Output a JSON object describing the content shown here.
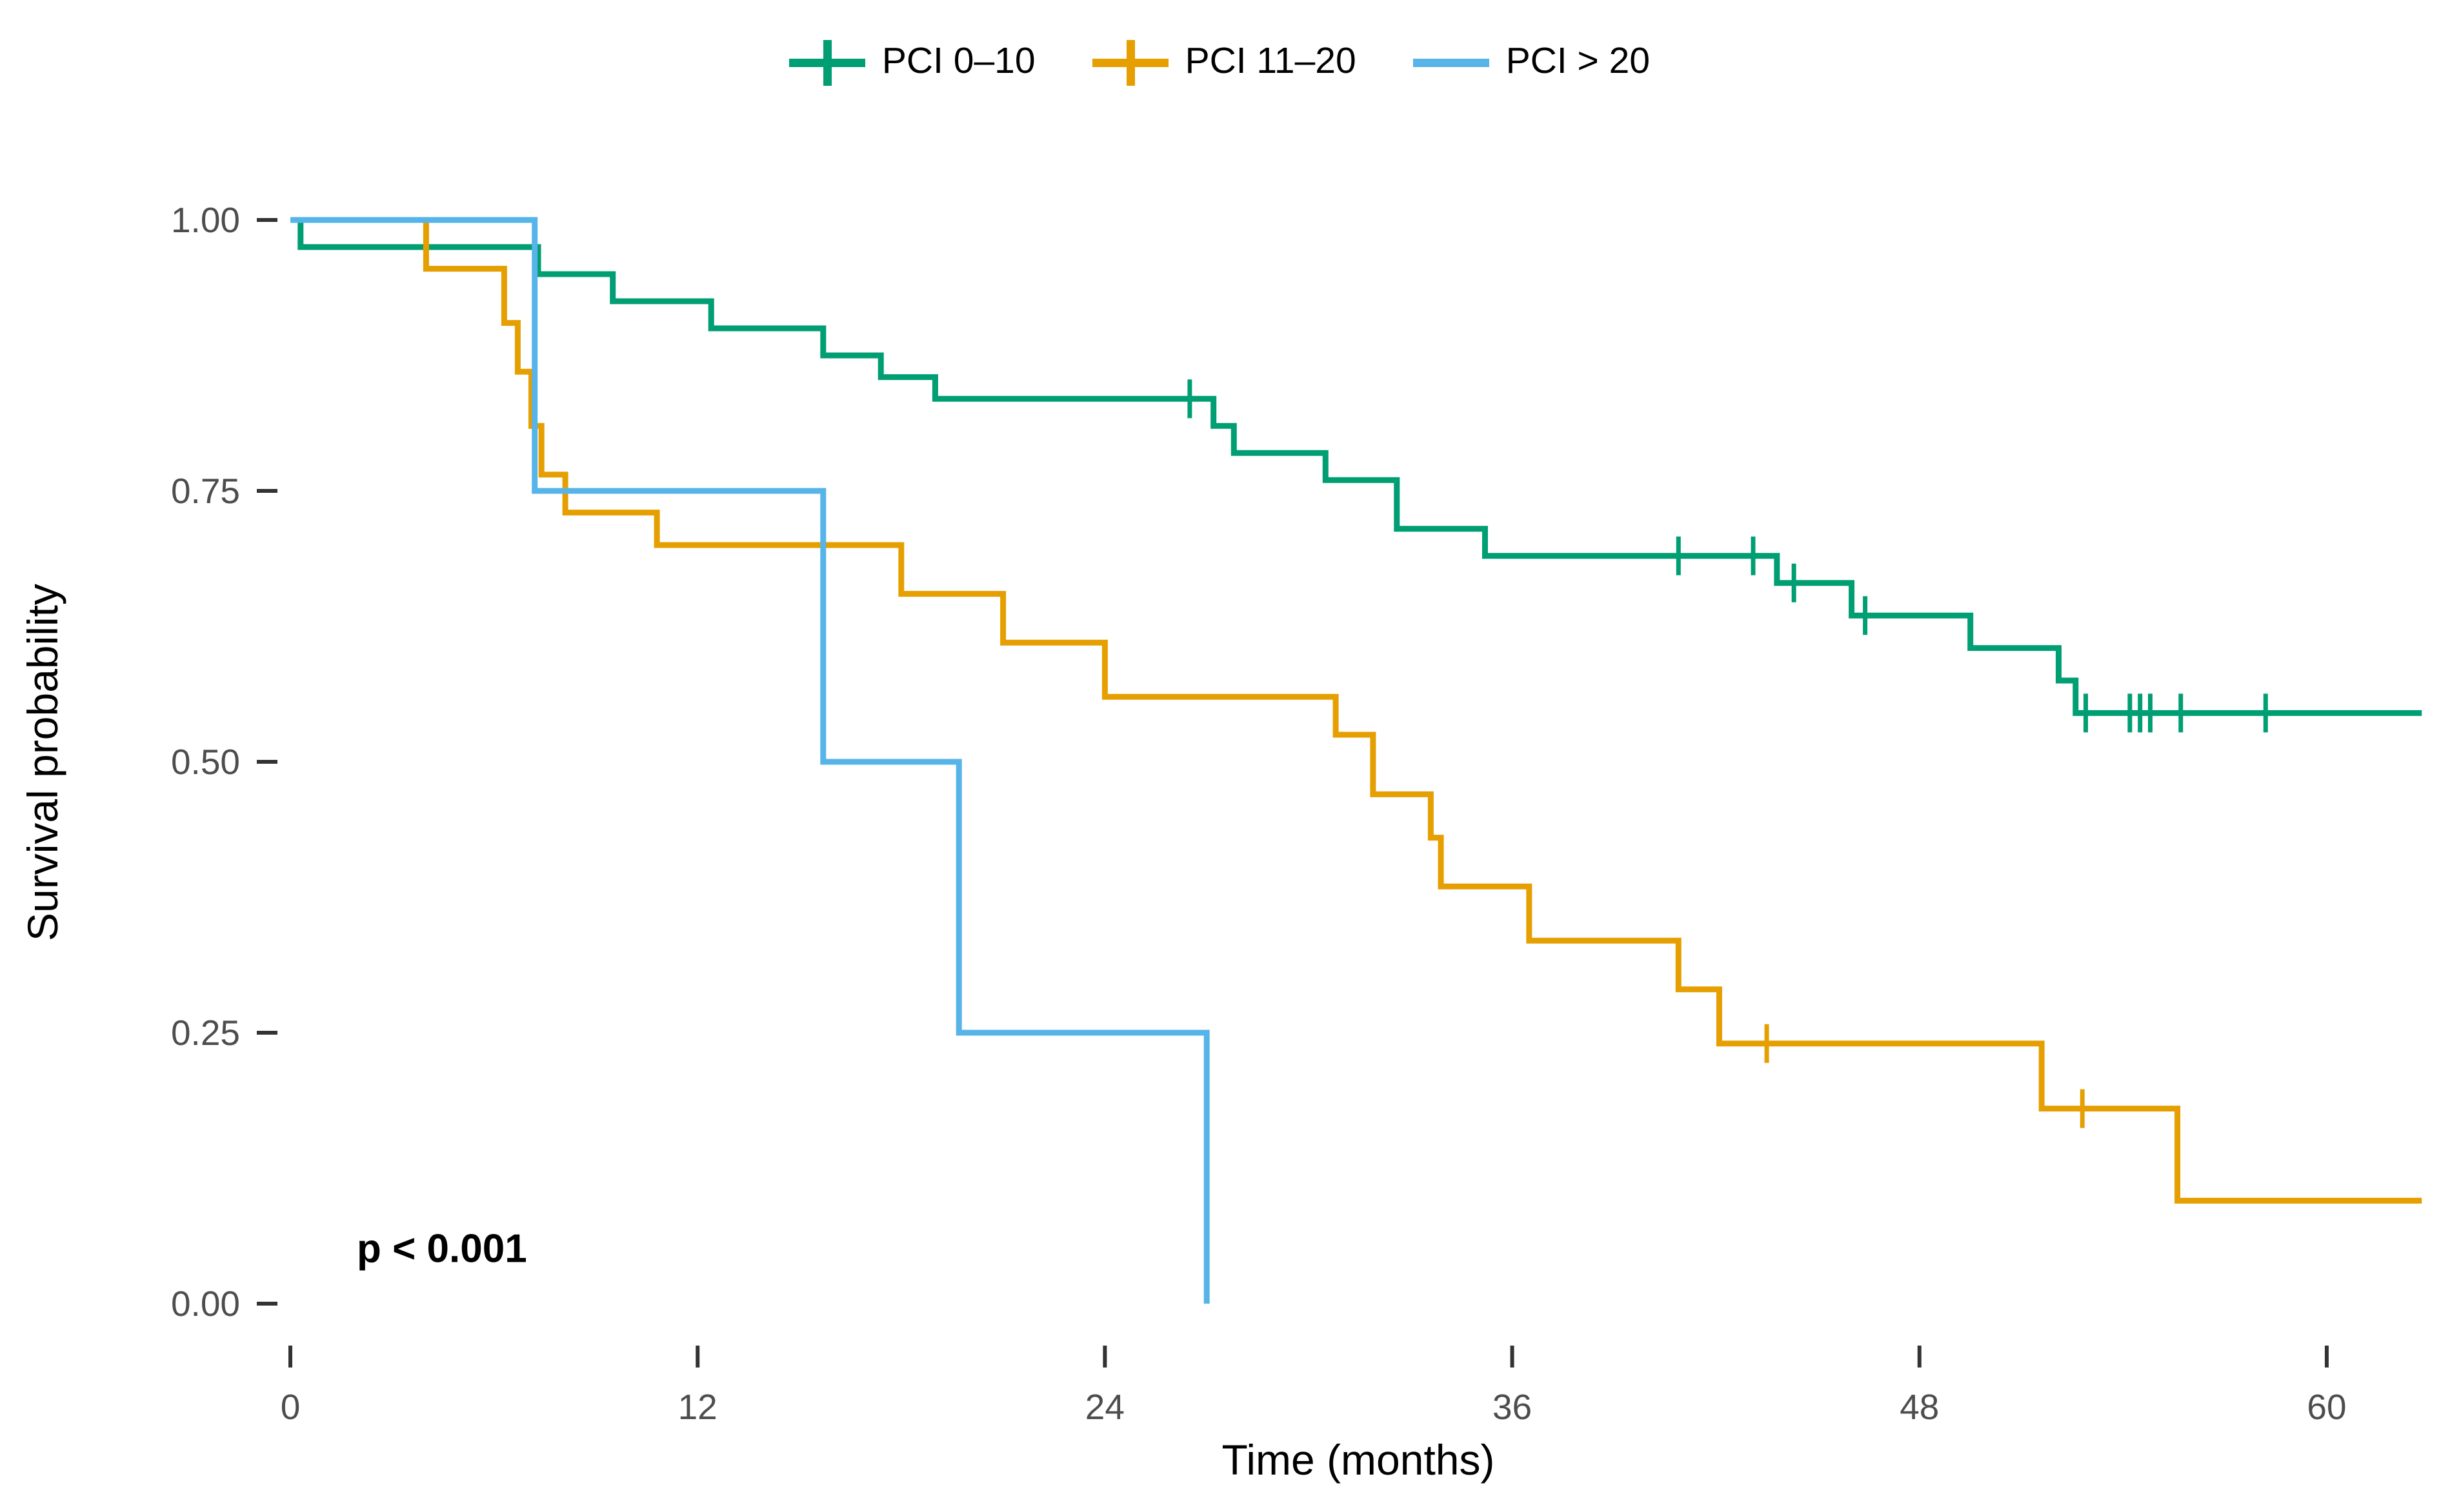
{
  "chart_data": {
    "type": "line",
    "subtype": "kaplan-meier-step",
    "title": "",
    "xlabel": "Time (months)",
    "ylabel": "Survival probability",
    "annotation": "p < 0.001",
    "legend_position": "top-center",
    "grid": false,
    "xlim": [
      0,
      63
    ],
    "ylim": [
      0,
      1
    ],
    "x_tick_values": [
      0,
      12,
      24,
      36,
      48,
      60
    ],
    "x_tick_labels": [
      "0",
      "12",
      "24",
      "36",
      "48",
      "60"
    ],
    "y_tick_values": [
      1.0,
      0.75,
      0.5,
      0.25,
      0.0
    ],
    "y_tick_labels": [
      "1.00",
      "0.75",
      "0.50",
      "0.25",
      "0.00"
    ],
    "series": [
      {
        "name": "PCI 0–10",
        "color": "#009E73",
        "steps": [
          [
            0,
            1.0
          ],
          [
            0.3,
            0.975
          ],
          [
            7.3,
            0.95
          ],
          [
            9.5,
            0.925
          ],
          [
            12.4,
            0.9
          ],
          [
            15.7,
            0.875
          ],
          [
            17.4,
            0.855
          ],
          [
            19.0,
            0.835
          ],
          [
            27.2,
            0.81
          ],
          [
            27.8,
            0.785
          ],
          [
            30.5,
            0.76
          ],
          [
            32.6,
            0.715
          ],
          [
            35.2,
            0.69
          ],
          [
            43.8,
            0.665
          ],
          [
            46.0,
            0.635
          ],
          [
            49.5,
            0.605
          ],
          [
            52.1,
            0.575
          ],
          [
            52.6,
            0.545
          ]
        ],
        "tail_end": 62.8,
        "censors": [
          [
            26.5,
            0.835
          ],
          [
            40.9,
            0.69
          ],
          [
            43.1,
            0.69
          ],
          [
            44.3,
            0.665
          ],
          [
            46.4,
            0.635
          ],
          [
            52.9,
            0.545
          ],
          [
            54.2,
            0.545
          ],
          [
            54.5,
            0.545
          ],
          [
            54.8,
            0.545
          ],
          [
            55.7,
            0.545
          ],
          [
            58.2,
            0.545
          ]
        ]
      },
      {
        "name": "PCI 11–20",
        "color": "#E69F00",
        "steps": [
          [
            0,
            1.0
          ],
          [
            4.0,
            0.955
          ],
          [
            6.3,
            0.905
          ],
          [
            6.7,
            0.86
          ],
          [
            7.1,
            0.81
          ],
          [
            7.4,
            0.765
          ],
          [
            8.1,
            0.73
          ],
          [
            10.8,
            0.7
          ],
          [
            18.0,
            0.655
          ],
          [
            21.0,
            0.61
          ],
          [
            24.0,
            0.56
          ],
          [
            30.8,
            0.525
          ],
          [
            31.9,
            0.47
          ],
          [
            33.6,
            0.43
          ],
          [
            33.9,
            0.385
          ],
          [
            36.5,
            0.335
          ],
          [
            40.9,
            0.29
          ],
          [
            42.1,
            0.24
          ],
          [
            51.6,
            0.18
          ],
          [
            55.6,
            0.095
          ]
        ],
        "tail_end": 62.8,
        "censors": [
          [
            43.5,
            0.24
          ],
          [
            52.8,
            0.18
          ]
        ]
      },
      {
        "name": "PCI > 20",
        "color": "#56B4E9",
        "steps": [
          [
            0,
            1.0
          ],
          [
            7.2,
            0.75
          ],
          [
            15.7,
            0.5
          ],
          [
            19.7,
            0.25
          ],
          [
            27.0,
            0.0
          ]
        ],
        "tail_end": null,
        "censors": []
      }
    ]
  },
  "style": {
    "tick_label_color": "#4d4d4d",
    "tick_mark_color": "#333333",
    "background": "#ffffff"
  }
}
